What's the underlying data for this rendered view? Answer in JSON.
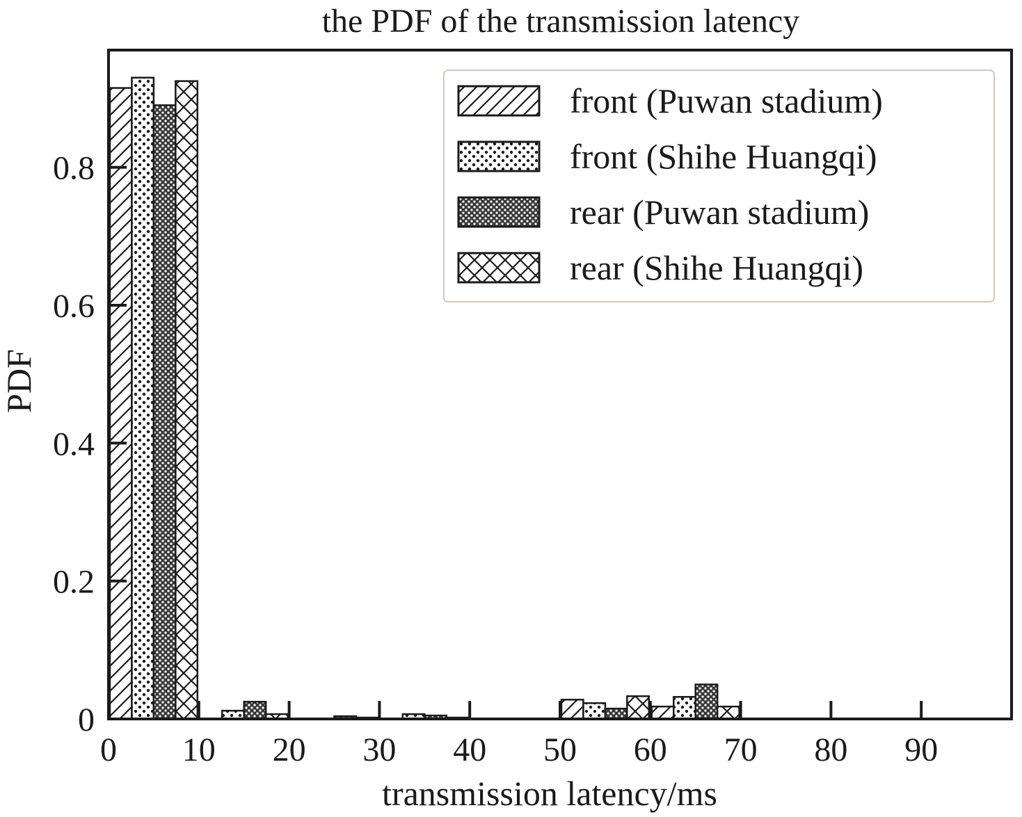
{
  "chart_data": {
    "type": "bar",
    "title": "the PDF of the transmission latency",
    "xlabel": "transmission latency/ms",
    "ylabel": "PDF",
    "xlim": [
      0,
      100
    ],
    "ylim": [
      0,
      0.97
    ],
    "xticks": [
      0,
      10,
      20,
      30,
      40,
      50,
      60,
      70,
      80,
      90
    ],
    "xtick_labels": [
      "0",
      "10",
      "20",
      "30",
      "40",
      "50",
      "60",
      "70",
      "80",
      "90"
    ],
    "yticks": [
      0,
      0.2,
      0.4,
      0.6,
      0.8
    ],
    "ytick_labels": [
      "0",
      "0.2",
      "0.4",
      "0.6",
      "0.8"
    ],
    "bin_width": 10,
    "bins": [
      0,
      10,
      20,
      30,
      40,
      50,
      60,
      70,
      80,
      90
    ],
    "grid": false,
    "legend_position": "top-right",
    "series": [
      {
        "name": "front (Puwan stadium)",
        "pattern": "hatch",
        "values": [
          0.915,
          0.0,
          0.0,
          0.0,
          0.0,
          0.028,
          0.018,
          0.0,
          0.0,
          0.0
        ]
      },
      {
        "name": "front (Shihe Huangqi)",
        "pattern": "dots",
        "values": [
          0.93,
          0.012,
          0.0,
          0.007,
          0.0,
          0.023,
          0.032,
          0.0,
          0.0,
          0.0
        ]
      },
      {
        "name": "rear (Puwan stadium)",
        "pattern": "dense-dots",
        "values": [
          0.89,
          0.025,
          0.004,
          0.005,
          0.0,
          0.015,
          0.05,
          0.0,
          0.0,
          0.0
        ]
      },
      {
        "name": "rear (Shihe Huangqi)",
        "pattern": "crosshatch",
        "values": [
          0.925,
          0.007,
          0.002,
          0.002,
          0.0,
          0.033,
          0.018,
          0.0,
          0.0,
          0.0
        ]
      }
    ]
  }
}
